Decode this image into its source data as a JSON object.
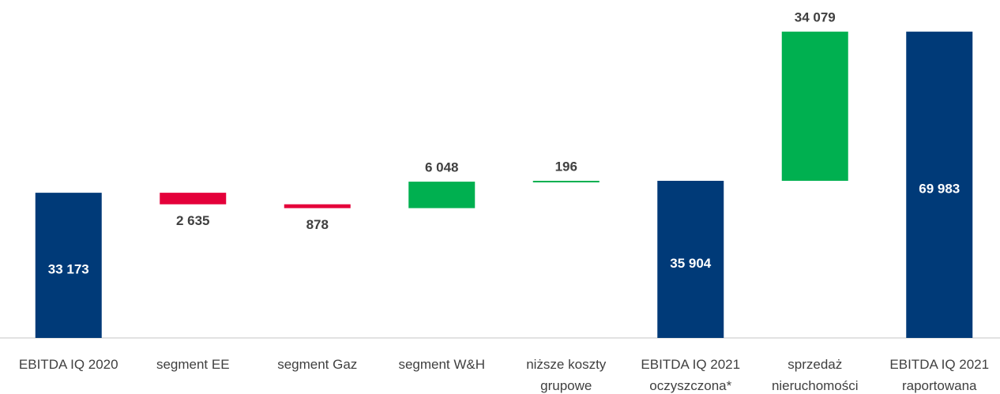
{
  "chart_data": {
    "type": "waterfall",
    "categories": [
      [
        "EBITDA IQ 2020"
      ],
      [
        "segment EE"
      ],
      [
        "segment Gaz"
      ],
      [
        "segment W&H"
      ],
      [
        "niższe koszty",
        "grupowe"
      ],
      [
        "EBITDA IQ 2021",
        "oczyszczona*"
      ],
      [
        "sprzedaż",
        "nieruchomości"
      ],
      [
        "EBITDA IQ 2021",
        "raportowana"
      ]
    ],
    "values": [
      33173,
      -2635,
      -878,
      6048,
      196,
      35904,
      34079,
      69983
    ],
    "value_labels": [
      "33 173",
      "2 635",
      "878",
      "6 048",
      "196",
      "35 904",
      "34 079",
      "69 983"
    ],
    "measure": [
      "total",
      "relative",
      "relative",
      "relative",
      "relative",
      "total",
      "relative",
      "total"
    ],
    "colors": {
      "total": "#003a78",
      "increase": "#00b050",
      "decrease": "#e4003a"
    },
    "ylim": [
      0,
      70000
    ]
  }
}
